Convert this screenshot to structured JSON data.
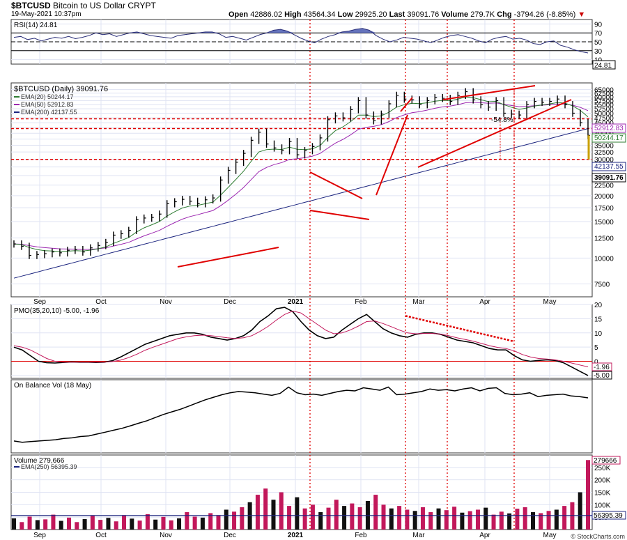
{
  "header": {
    "symbol": "$BTCUSD",
    "name": "Bitcoin to US Dollar",
    "exchange": "CRYPT",
    "date_time": "19-May-2021 10:37pm",
    "open_label": "Open",
    "open": "42886.02",
    "high_label": "High",
    "high": "43564.34",
    "low_label": "Low",
    "low": "29925.20",
    "last_label": "Last",
    "last": "39091.76",
    "volume_label": "Volume",
    "volume": "279.7K",
    "chg_label": "Chg",
    "chg": "-3794.26 (-8.85%)",
    "watermark": "© StockCharts.com"
  },
  "colors": {
    "rsi": "#2b2f7a",
    "price": "#000000",
    "ema20": "#2e7d32",
    "ema50": "#9c27b0",
    "ema200": "#1a237e",
    "red": "#e00000",
    "pmo_signal": "#c2185b",
    "vol_up": "#c2185b",
    "vol_down": "#111111",
    "grid": "#dfe3f3"
  },
  "chart_data": [
    {
      "type": "line",
      "panel": "RSI",
      "title": "RSI(14) 24.81",
      "ylim": [
        0,
        100
      ],
      "yticks": [
        10,
        30,
        50,
        70,
        90
      ],
      "overbought": 70,
      "oversold": 30,
      "last_value_label": "24.81",
      "series": [
        {
          "values": [
            60,
            62,
            55,
            58,
            52,
            56,
            60,
            58,
            62,
            57,
            60,
            64,
            70,
            66,
            68,
            62,
            66,
            70,
            72,
            68,
            64,
            62,
            60,
            58,
            64,
            66,
            68,
            70,
            72,
            72,
            68,
            60,
            62,
            58,
            54,
            60,
            66,
            70,
            76,
            78,
            74,
            66,
            58,
            52,
            48,
            56,
            62,
            66,
            72,
            74,
            78,
            80,
            76,
            64,
            56,
            50,
            54,
            60,
            58,
            56,
            52,
            48,
            54,
            60,
            64,
            66,
            62,
            58,
            52,
            48,
            56,
            60,
            62,
            56,
            58,
            54,
            46,
            44,
            50,
            52,
            42,
            38,
            32,
            28,
            25
          ]
        }
      ]
    },
    {
      "type": "line",
      "panel": "Price",
      "title": "$BTCUSD (Daily) 39091.76",
      "yscale": "log",
      "ylim": [
        6500,
        70000
      ],
      "yticks": [
        7500,
        10000,
        12500,
        15000,
        17500,
        20000,
        22500,
        25000,
        27500,
        30000,
        32500,
        35000,
        37500,
        40000,
        42500,
        45000,
        47500,
        50000,
        52500,
        55000,
        57500,
        60000,
        62500,
        65000
      ],
      "x_labels": [
        "Sep",
        "Oct",
        "Nov",
        "Dec",
        "2021",
        "Feb",
        "Mar",
        "Apr",
        "May"
      ],
      "legend": [
        {
          "name": "EMA(20) 50244.17"
        },
        {
          "name": "EMA(50) 52912.83"
        },
        {
          "name": "EMA(200) 42137.55"
        }
      ],
      "right_labels": [
        "52912.83",
        "50244.17",
        "42137.55",
        "39091.76"
      ],
      "annotation": "-54.8%",
      "horizontal_levels": [
        47000,
        42137.55,
        29925
      ],
      "price": [
        11700,
        11400,
        10300,
        10400,
        10500,
        10700,
        10600,
        10900,
        11000,
        10700,
        11200,
        11500,
        11900,
        12900,
        13100,
        13600,
        15300,
        15600,
        15700,
        16300,
        18300,
        18700,
        19200,
        18800,
        18300,
        19100,
        19500,
        23800,
        26500,
        29000,
        32000,
        37000,
        40500,
        35500,
        34000,
        33000,
        36500,
        31500,
        33000,
        34500,
        38000,
        46500,
        48500,
        47500,
        52000,
        57500,
        49000,
        46000,
        49500,
        55500,
        61000,
        58500,
        58000,
        55000,
        57500,
        59500,
        59000,
        57000,
        61000,
        63500,
        58000,
        55000,
        53500,
        57500,
        50000,
        49500,
        49000,
        55000,
        57000,
        56500,
        57000,
        58500,
        55000,
        50000,
        45000,
        39091
      ]
    },
    {
      "type": "line",
      "panel": "PMO",
      "title": "PMO(35,20,10) -5.00, -1.96",
      "ylim": [
        -6,
        20
      ],
      "yticks": [
        -5,
        0,
        5,
        10,
        15,
        20
      ],
      "last_value_labels": [
        "-1.96",
        "-5.00"
      ],
      "series": [
        {
          "values": [
            5.0,
            4.0,
            2.0,
            0.0,
            -0.5,
            -0.6,
            -0.4,
            -0.2,
            -0.3,
            -0.3,
            -0.4,
            -0.3,
            0.2,
            1.5,
            3.0,
            4.5,
            6.0,
            7.0,
            8.0,
            9.0,
            9.5,
            10.0,
            10.0,
            9.5,
            8.5,
            8.0,
            7.5,
            8.0,
            9.0,
            11.0,
            14.0,
            16.0,
            18.5,
            19.0,
            17.5,
            14.0,
            11.0,
            9.0,
            8.0,
            8.5,
            11.0,
            13.0,
            15.0,
            16.5,
            14.0,
            11.5,
            10.0,
            9.0,
            8.5,
            9.5,
            10.0,
            10.0,
            9.5,
            8.5,
            7.5,
            7.0,
            6.5,
            5.5,
            4.5,
            4.0,
            4.0,
            2.0,
            0.5,
            0.0,
            0.3,
            0.5,
            0.3,
            -0.5,
            -2.0,
            -3.5,
            -5.0
          ]
        },
        {
          "values": [
            5.5,
            5.0,
            4.0,
            2.5,
            1.0,
            0.0,
            -0.3,
            -0.3,
            -0.3,
            -0.3,
            -0.3,
            -0.3,
            -0.1,
            0.4,
            1.3,
            2.5,
            3.9,
            5.0,
            6.0,
            7.0,
            8.0,
            8.6,
            9.0,
            9.2,
            9.0,
            8.7,
            8.3,
            8.0,
            8.3,
            9.0,
            10.5,
            12.3,
            14.5,
            16.5,
            17.7,
            17.0,
            15.0,
            13.0,
            11.0,
            9.7,
            10.0,
            11.0,
            12.4,
            14.0,
            14.2,
            13.3,
            12.2,
            11.0,
            10.0,
            9.7,
            9.8,
            9.8,
            9.6,
            9.0,
            8.3,
            7.7,
            7.1,
            6.3,
            5.5,
            4.9,
            4.5,
            3.7,
            2.4,
            1.5,
            1.0,
            0.8,
            0.5,
            0.0,
            -0.6,
            -1.3,
            -1.96
          ]
        }
      ]
    },
    {
      "type": "line",
      "panel": "OBV",
      "title": "On Balance Vol (18 May)",
      "series": [
        {
          "values": [
            10,
            8,
            9,
            10,
            11,
            12,
            14,
            15,
            17,
            18,
            21,
            24,
            27,
            30,
            34,
            38,
            42,
            47,
            52,
            56,
            60,
            65,
            70,
            75,
            79,
            83,
            86,
            88,
            87,
            86,
            84,
            82,
            85,
            95,
            86,
            83,
            84,
            82,
            85,
            88,
            90,
            89,
            94,
            92,
            90,
            95,
            83,
            84,
            86,
            88,
            92,
            90,
            91,
            89,
            92,
            94,
            89,
            93,
            94,
            85,
            83,
            84,
            86,
            80,
            82,
            83,
            84,
            81,
            80,
            78
          ]
        }
      ]
    },
    {
      "type": "bar",
      "panel": "Volume",
      "title": "Volume 279,666",
      "legend": [
        {
          "name": "EMA(250) 56395.39"
        }
      ],
      "ylim": [
        0,
        300000
      ],
      "yticks": [
        50000,
        100000,
        150000,
        200000,
        250000
      ],
      "ytick_labels": [
        "50K",
        "100K",
        "150K",
        "200K",
        "250K"
      ],
      "last_value_labels": [
        "279666",
        "56395.39"
      ],
      "values": [
        45000,
        30000,
        52000,
        38000,
        41000,
        60000,
        35000,
        48000,
        30000,
        42000,
        55000,
        39000,
        47000,
        33000,
        58000,
        44000,
        36000,
        62000,
        40000,
        51000,
        37000,
        45000,
        70000,
        52000,
        48000,
        66000,
        58000,
        80000,
        72000,
        90000,
        110000,
        140000,
        165000,
        120000,
        150000,
        95000,
        130000,
        85000,
        100000,
        70000,
        88000,
        120000,
        95000,
        105000,
        90000,
        115000,
        140000,
        100000,
        85000,
        95000,
        80000,
        75000,
        90000,
        70000,
        85000,
        78000,
        92000,
        68000,
        74000,
        80000,
        88000,
        60000,
        72000,
        65000,
        84000,
        90000,
        70000,
        66000,
        75000,
        80000,
        95000,
        110000,
        150000,
        279666
      ]
    }
  ],
  "x_axis_labels": [
    "Sep",
    "Oct",
    "Nov",
    "Dec",
    "2021",
    "Feb",
    "Mar",
    "Apr",
    "May"
  ]
}
